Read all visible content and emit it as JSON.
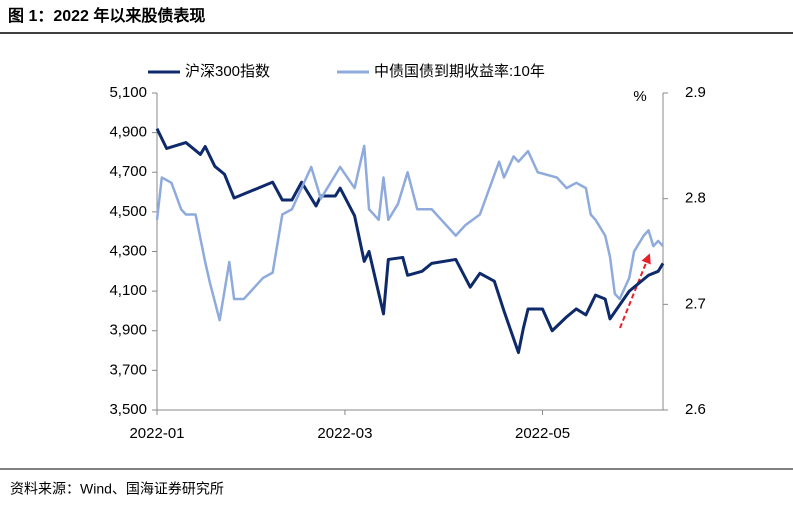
{
  "chart_data": {
    "type": "line",
    "title": "图 1：2022 年以来股债表现",
    "source": "资料来源：Wind、国海证券研究所",
    "y2label": "%",
    "xlim": [
      0,
      105
    ],
    "xticks": [
      {
        "value": 0,
        "label": "2022-01"
      },
      {
        "value": 39,
        "label": "2022-03"
      },
      {
        "value": 80,
        "label": "2022-05"
      }
    ],
    "ylim": [
      3500,
      5100
    ],
    "yticks": [
      {
        "value": 3500,
        "label": "3,500"
      },
      {
        "value": 3700,
        "label": "3,700"
      },
      {
        "value": 3900,
        "label": "3,900"
      },
      {
        "value": 4100,
        "label": "4,100"
      },
      {
        "value": 4300,
        "label": "4,300"
      },
      {
        "value": 4500,
        "label": "4,500"
      },
      {
        "value": 4700,
        "label": "4,700"
      },
      {
        "value": 4900,
        "label": "4,900"
      },
      {
        "value": 5100,
        "label": "5,100"
      }
    ],
    "y2lim": [
      2.6,
      2.9
    ],
    "y2ticks": [
      2.6,
      2.7,
      2.8,
      2.9
    ],
    "series": [
      {
        "name": "沪深300指数",
        "color": "#0e2a6b",
        "x": [
          0,
          2,
          6,
          9,
          10,
          12,
          14,
          16,
          24,
          26,
          28,
          30,
          33,
          34,
          37,
          38,
          41,
          43,
          44,
          47,
          48,
          51,
          52,
          55,
          57,
          62,
          65,
          67,
          70,
          72,
          75,
          76,
          77,
          80,
          82,
          85,
          87,
          89,
          91,
          93,
          94,
          98,
          102,
          104,
          105
        ],
        "values": [
          4920,
          4820,
          4850,
          4790,
          4830,
          4730,
          4690,
          4570,
          4650,
          4560,
          4560,
          4650,
          4530,
          4580,
          4580,
          4620,
          4480,
          4250,
          4300,
          3985,
          4260,
          4270,
          4180,
          4200,
          4240,
          4260,
          4120,
          4190,
          4150,
          4000,
          3790,
          3910,
          4010,
          4010,
          3900,
          3970,
          4010,
          3980,
          4080,
          4060,
          3960,
          4100,
          4180,
          4200,
          4240
        ]
      },
      {
        "name": "中债国债到期收益率:10年",
        "color": "#8faadc",
        "axis": "y2",
        "x": [
          0,
          1,
          3,
          5,
          6,
          8,
          10,
          11,
          13,
          15,
          16,
          18,
          22,
          24,
          26,
          28,
          30,
          32,
          34,
          38,
          41,
          43,
          44,
          46,
          47,
          48,
          50,
          52,
          54,
          57,
          59,
          62,
          64,
          67,
          69,
          71,
          72,
          74,
          75,
          77,
          79,
          83,
          85,
          87,
          89,
          90,
          91,
          93,
          94,
          95,
          96,
          98,
          99,
          101,
          102,
          103,
          104,
          105
        ],
        "values": [
          2.78,
          2.82,
          2.815,
          2.79,
          2.785,
          2.785,
          2.74,
          2.72,
          2.685,
          2.74,
          2.705,
          2.705,
          2.725,
          2.73,
          2.785,
          2.79,
          2.81,
          2.83,
          2.8,
          2.83,
          2.81,
          2.85,
          2.79,
          2.78,
          2.82,
          2.78,
          2.795,
          2.825,
          2.79,
          2.79,
          2.78,
          2.765,
          2.775,
          2.785,
          2.81,
          2.835,
          2.82,
          2.84,
          2.835,
          2.845,
          2.825,
          2.82,
          2.81,
          2.815,
          2.81,
          2.785,
          2.78,
          2.765,
          2.745,
          2.71,
          2.705,
          2.725,
          2.75,
          2.765,
          2.77,
          2.755,
          2.76,
          2.755
        ]
      }
    ]
  }
}
